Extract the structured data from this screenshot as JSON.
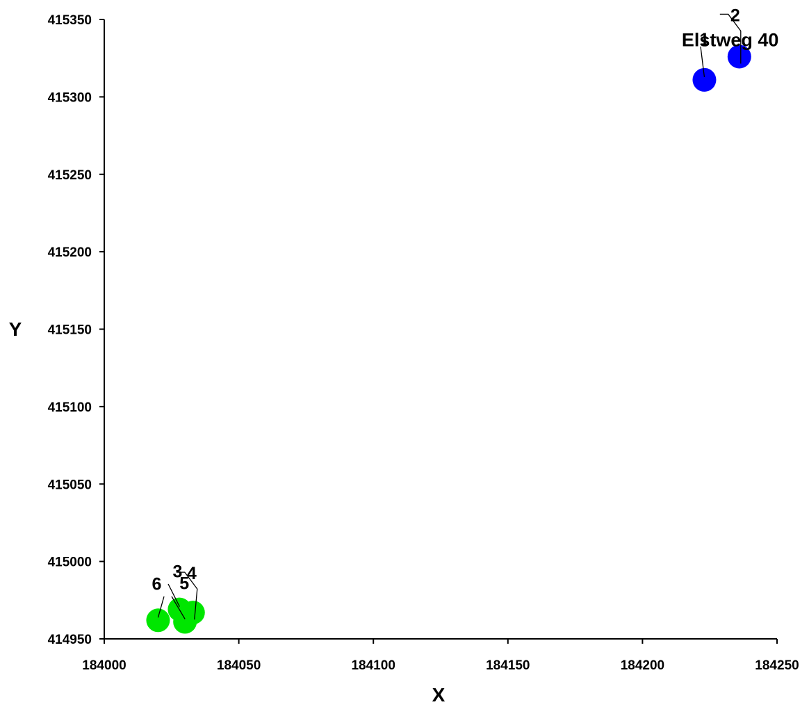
{
  "chart_data": {
    "type": "scatter",
    "title": "",
    "xlabel": "X",
    "ylabel": "Y",
    "xlim": [
      184000,
      184250
    ],
    "ylim": [
      414950,
      415350
    ],
    "xticks": [
      184000,
      184050,
      184100,
      184150,
      184200,
      184250
    ],
    "yticks": [
      414950,
      415000,
      415050,
      415100,
      415150,
      415200,
      415250,
      415300,
      415350
    ],
    "x_tick_labels": [
      "184000",
      "184050",
      "184100",
      "184150",
      "184200",
      "184250"
    ],
    "y_tick_labels": [
      "414950",
      "415000",
      "415050",
      "415100",
      "415150",
      "415200",
      "415250",
      "415300",
      "415350"
    ],
    "grid": false,
    "legend": "none",
    "series": [
      {
        "color": "#0000ff",
        "group_label": "Elstweg 40",
        "points": [
          {
            "label": "1",
            "x": 184223,
            "y": 415311
          },
          {
            "label": "2",
            "x": 184236,
            "y": 415326
          }
        ]
      },
      {
        "color": "#00e600",
        "group_label": "",
        "points": [
          {
            "label": "3",
            "x": 184028,
            "y": 414969
          },
          {
            "label": "4",
            "x": 184033,
            "y": 414967
          },
          {
            "label": "5",
            "x": 184030,
            "y": 414961
          },
          {
            "label": "6",
            "x": 184020,
            "y": 414962
          }
        ]
      }
    ]
  }
}
